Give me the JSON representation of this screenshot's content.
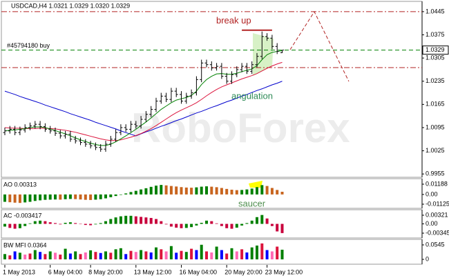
{
  "chart_data": [
    {
      "type": "ohlc",
      "title": "USDCAD,H4 1.0321 1.0329 1.0320 1.0329",
      "watermark": "RoboForex",
      "categories": [
        "1 May 2013",
        null,
        null,
        null,
        null,
        null,
        null,
        null,
        null,
        "6 May 04:00",
        null,
        null,
        null,
        null,
        null,
        null,
        null,
        "8 May 20:00",
        null,
        null,
        null,
        null,
        null,
        null,
        null,
        null,
        "13 May 12:00",
        null,
        null,
        null,
        null,
        null,
        null,
        null,
        null,
        "16 May 04:00",
        null,
        null,
        null,
        null,
        null,
        null,
        null,
        null,
        "20 May 20:00",
        null,
        null,
        null,
        null,
        null,
        null,
        null,
        "23 May 12:00",
        null,
        null,
        null
      ],
      "open": [
        1.008,
        1.0085,
        1.009,
        1.008,
        1.0088,
        1.0095,
        1.01,
        1.0105,
        1.0098,
        1.009,
        1.0085,
        1.0078,
        1.007,
        1.0075,
        1.006,
        1.0055,
        1.005,
        1.0045,
        1.004,
        1.0035,
        1.003,
        1.0045,
        1.006,
        1.008,
        1.0095,
        1.009,
        1.0105,
        1.01,
        1.012,
        1.0135,
        1.015,
        1.0175,
        1.019,
        1.018,
        1.0205,
        1.0195,
        1.0175,
        1.019,
        1.02,
        1.024,
        1.029,
        1.0285,
        1.0275,
        1.028,
        1.025,
        1.0235,
        1.0255,
        1.027,
        1.028,
        1.0265,
        1.0285,
        1.031,
        1.037,
        1.0365,
        1.034,
        1.0321
      ],
      "high": [
        1.0095,
        1.01,
        1.01,
        1.0098,
        1.0105,
        1.011,
        1.0115,
        1.0115,
        1.0108,
        1.01,
        1.0095,
        1.0088,
        1.0085,
        1.0085,
        1.007,
        1.0065,
        1.006,
        1.0055,
        1.005,
        1.0045,
        1.0055,
        1.007,
        1.009,
        1.0105,
        1.0105,
        1.0115,
        1.0115,
        1.013,
        1.0145,
        1.016,
        1.0185,
        1.02,
        1.02,
        1.0215,
        1.0215,
        1.0205,
        1.02,
        1.021,
        1.025,
        1.03,
        1.03,
        1.0295,
        1.029,
        1.029,
        1.026,
        1.0265,
        1.028,
        1.029,
        1.029,
        1.0295,
        1.032,
        1.0385,
        1.038,
        1.0375,
        1.035,
        1.0329
      ],
      "low": [
        1.0072,
        1.0077,
        1.0072,
        1.0072,
        1.008,
        1.0087,
        1.0092,
        1.009,
        1.0082,
        1.0077,
        1.007,
        1.0062,
        1.0062,
        1.0052,
        1.0047,
        1.0042,
        1.0037,
        1.0032,
        1.0027,
        1.0022,
        1.0022,
        1.0037,
        1.0052,
        1.0072,
        1.0082,
        1.0082,
        1.0092,
        1.0092,
        1.0112,
        1.0127,
        1.0142,
        1.0167,
        1.0172,
        1.0172,
        1.0187,
        1.0167,
        1.0167,
        1.0182,
        1.0192,
        1.0232,
        1.0277,
        1.0267,
        1.0267,
        1.0242,
        1.0227,
        1.0227,
        1.0247,
        1.0262,
        1.0257,
        1.0257,
        1.0277,
        1.0302,
        1.0357,
        1.0332,
        1.0317,
        1.032
      ],
      "close": [
        1.0085,
        1.009,
        1.008,
        1.0088,
        1.0095,
        1.01,
        1.0105,
        1.0098,
        1.009,
        1.0085,
        1.0078,
        1.007,
        1.0075,
        1.006,
        1.0055,
        1.005,
        1.0045,
        1.004,
        1.0035,
        1.003,
        1.0045,
        1.006,
        1.008,
        1.0095,
        1.009,
        1.0105,
        1.01,
        1.012,
        1.0135,
        1.015,
        1.0175,
        1.019,
        1.018,
        1.0205,
        1.0195,
        1.0175,
        1.019,
        1.02,
        1.024,
        1.029,
        1.0285,
        1.0275,
        1.028,
        1.025,
        1.0235,
        1.0255,
        1.027,
        1.028,
        1.0265,
        1.0285,
        1.031,
        1.037,
        1.0365,
        1.034,
        1.0325,
        1.0329
      ],
      "color": "#000000",
      "lines": [
        {
          "color": "#0000cd",
          "values": [
            1.0205,
            1.02,
            1.0195,
            1.0189,
            1.0184,
            1.0179,
            1.0174,
            1.0169,
            1.0163,
            1.0158,
            1.0153,
            1.0148,
            1.0143,
            1.0137,
            1.0132,
            1.0127,
            1.0122,
            1.0117,
            1.0111,
            1.0106,
            1.0101,
            1.0096,
            1.0091,
            1.0085,
            1.008,
            1.0075,
            1.007,
            1.0076,
            1.0082,
            1.0087,
            1.0093,
            1.0099,
            1.0104,
            1.011,
            1.0116,
            1.0121,
            1.0127,
            1.0133,
            1.0139,
            1.0144,
            1.015,
            1.0156,
            1.0161,
            1.0167,
            1.0173,
            1.0178,
            1.0184,
            1.019,
            1.0195,
            1.0201,
            1.0207,
            1.0212,
            1.0218,
            1.0224,
            1.0229,
            1.0235
          ]
        },
        {
          "color": "#dc143c",
          "values": [
            1.0095,
            1.0094,
            1.0093,
            1.0093,
            1.0092,
            1.0092,
            1.0092,
            1.0093,
            1.0093,
            1.0092,
            1.0091,
            1.0089,
            1.0087,
            1.0084,
            1.0081,
            1.0077,
            1.0073,
            1.0069,
            1.0065,
            1.0061,
            1.0058,
            1.0056,
            1.0056,
            1.0058,
            1.0062,
            1.0066,
            1.0071,
            1.0077,
            1.0084,
            1.0092,
            1.0101,
            1.0111,
            1.0121,
            1.0131,
            1.014,
            1.0148,
            1.0155,
            1.0162,
            1.017,
            1.018,
            1.0191,
            1.0201,
            1.021,
            1.0218,
            1.0224,
            1.023,
            1.0236,
            1.0242,
            1.0247,
            1.0252,
            1.0258,
            1.0266,
            1.0274,
            1.0281,
            1.0287,
            1.0292
          ]
        },
        {
          "color": "#008000",
          "values": [
            1.0085,
            1.0087,
            1.0088,
            1.009,
            1.0092,
            1.0095,
            1.0097,
            1.0097,
            1.0095,
            1.0091,
            1.0086,
            1.0081,
            1.0076,
            1.007,
            1.0064,
            1.0058,
            1.0053,
            1.0048,
            1.0044,
            1.0041,
            1.0041,
            1.0045,
            1.0052,
            1.0061,
            1.007,
            1.008,
            1.009,
            1.0101,
            1.0112,
            1.0124,
            1.0137,
            1.015,
            1.016,
            1.017,
            1.0178,
            1.0182,
            1.0186,
            1.0192,
            1.0205,
            1.0225,
            1.024,
            1.025,
            1.0257,
            1.0258,
            1.0256,
            1.0256,
            1.0259,
            1.0264,
            1.0268,
            1.0272,
            1.0282,
            1.03,
            1.0315,
            1.0322,
            1.0325,
            1.0327
          ]
        }
      ],
      "ylim": [
        0.9945,
        1.0476
      ],
      "yticks": [
        1.0445,
        1.0375,
        1.0305,
        1.0235,
        1.0165,
        1.0095,
        1.0025,
        0.9955
      ],
      "bid": 1.0329,
      "order": {
        "label": "#45794180 buy",
        "price": 1.0329,
        "color": "#008000"
      },
      "levels": [
        1.0445,
        1.0276
      ],
      "level_color": "#b22222",
      "break_up": {
        "label": "break up",
        "price": 1.0389,
        "color": "#b22222"
      },
      "annotations": [
        {
          "text": "angulation",
          "color": "#2e8b57"
        }
      ]
    },
    {
      "type": "histogram",
      "label": "AO 0.00313",
      "values": [
        -0.0085,
        -0.009,
        -0.0095,
        -0.0098,
        -0.0092,
        -0.0085,
        -0.0075,
        -0.0068,
        -0.0062,
        -0.006,
        -0.0058,
        -0.006,
        -0.0055,
        -0.0052,
        -0.0054,
        -0.0058,
        -0.0062,
        -0.0064,
        -0.006,
        -0.0055,
        -0.0045,
        -0.0032,
        -0.0018,
        -0.0005,
        0.0012,
        0.0028,
        0.0042,
        0.0058,
        0.0072,
        0.0088,
        0.0102,
        0.011,
        0.0105,
        0.0098,
        0.0092,
        0.0085,
        0.008,
        0.0078,
        0.0082,
        0.009,
        0.0094,
        0.009,
        0.0084,
        0.0075,
        0.0064,
        0.0055,
        0.005,
        0.0052,
        0.0058,
        0.0068,
        0.0085,
        0.0108,
        0.0098,
        0.0075,
        0.0052,
        0.00313
      ],
      "up_color": "#008000",
      "down_color": "#c8641e",
      "ylim": [
        -0.01604,
        0.01826
      ],
      "yticks": [
        0.01188,
        {
          "value": 0,
          "label": "0.00"
        },
        -0.01125
      ],
      "annotation": "saucer",
      "annotation_color": "#4f8f4f"
    },
    {
      "type": "histogram",
      "label": "AC -0.003417",
      "values": [
        -0.001,
        -0.0015,
        -0.0018,
        -0.0016,
        -0.0008,
        0.0002,
        0.001,
        0.0012,
        0.001,
        0.0006,
        0.0003,
        -0.0002,
        0.0004,
        0.0006,
        0.0003,
        -0.0001,
        -0.0004,
        -0.0005,
        -0.0002,
        0.0003,
        0.001,
        0.0018,
        0.0024,
        0.0028,
        0.003,
        0.003,
        0.0028,
        0.0026,
        0.0024,
        0.0022,
        0.0018,
        0.001,
        -0.0002,
        -0.001,
        -0.0014,
        -0.0016,
        -0.0015,
        -0.0012,
        -0.0006,
        0.0004,
        0.0012,
        0.001,
        0.0002,
        -0.0008,
        -0.0016,
        -0.0018,
        -0.0014,
        -0.0006,
        0.0003,
        0.0012,
        0.0025,
        0.0033,
        0.002,
        -0.0008,
        -0.0028,
        -0.003417
      ],
      "up_color": "#008000",
      "down_color": "#c8003c",
      "ylim": [
        -0.00524,
        0.00526
      ],
      "yticks": [
        0.00321,
        {
          "value": 0,
          "label": "0.00"
        },
        -0.00345
      ]
    },
    {
      "type": "histogram",
      "label": "BW MFI 0.0364",
      "values": [
        0.02,
        0.015,
        0.03,
        0.025,
        0.018,
        0.022,
        0.035,
        0.028,
        0.02,
        0.03,
        0.025,
        0.018,
        0.04,
        0.022,
        0.03,
        0.02,
        0.026,
        0.034,
        0.028,
        0.024,
        0.03,
        0.025,
        0.038,
        0.042,
        0.02,
        0.032,
        0.028,
        0.035,
        0.03,
        0.026,
        0.045,
        0.038,
        0.03,
        0.05,
        0.025,
        0.032,
        0.028,
        0.04,
        0.035,
        0.055,
        0.03,
        0.026,
        0.048,
        0.035,
        0.022,
        0.042,
        0.03,
        0.038,
        0.026,
        0.045,
        0.052,
        0.06,
        0.035,
        0.03,
        0.048,
        0.0364
      ],
      "colors": [
        "green",
        "crimson",
        "blue",
        "green",
        "hotpink",
        "crimson",
        "green",
        "blue",
        "crimson",
        "green",
        "hotpink",
        "crimson",
        "green",
        "blue",
        "green",
        "crimson",
        "hotpink",
        "green",
        "crimson",
        "blue",
        "green",
        "crimson",
        "green",
        "green",
        "blue",
        "crimson",
        "hotpink",
        "green",
        "crimson",
        "blue",
        "green",
        "crimson",
        "hotpink",
        "green",
        "blue",
        "crimson",
        "green",
        "crimson",
        "blue",
        "green",
        "crimson",
        "hotpink",
        "green",
        "blue",
        "crimson",
        "green",
        "hotpink",
        "crimson",
        "blue",
        "green",
        "green",
        "crimson",
        "blue",
        "hotpink",
        "crimson",
        "green"
      ],
      "ylim": [
        -0.0182,
        0.0753
      ],
      "yticks": [
        0.0545,
        0
      ]
    }
  ]
}
